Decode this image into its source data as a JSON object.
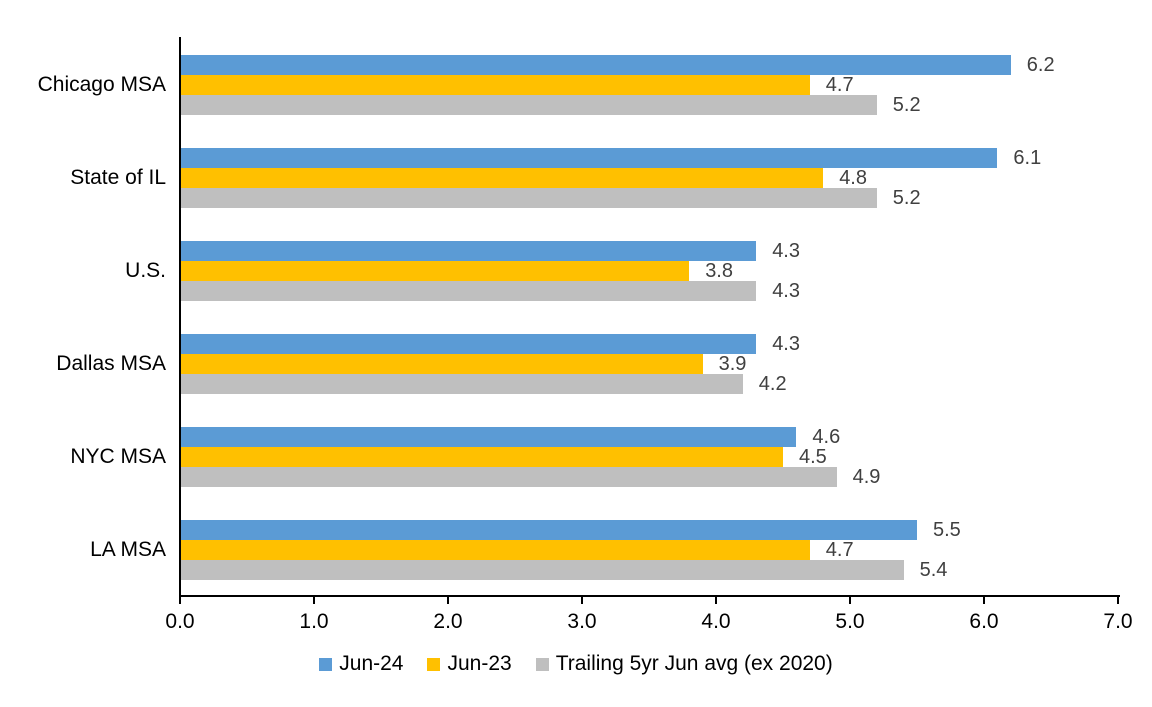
{
  "chart_data": {
    "type": "bar",
    "orientation": "horizontal",
    "title": "",
    "xlabel": "",
    "ylabel": "",
    "categories": [
      "Chicago MSA",
      "State of IL",
      "U.S.",
      "Dallas MSA",
      "NYC MSA",
      "LA MSA"
    ],
    "series": [
      {
        "name": "Jun-24",
        "color": "#5B9BD5",
        "values": [
          6.2,
          6.1,
          4.3,
          4.3,
          4.6,
          5.5
        ]
      },
      {
        "name": "Jun-23",
        "color": "#FFC000",
        "values": [
          4.7,
          4.8,
          3.8,
          3.9,
          4.5,
          4.7
        ]
      },
      {
        "name": "Trailing 5yr Jun avg (ex 2020)",
        "color": "#BFBFBF",
        "values": [
          5.2,
          5.2,
          4.3,
          4.2,
          4.9,
          5.4
        ]
      }
    ],
    "data_labels": [
      [
        "6.2",
        "4.7",
        "5.2"
      ],
      [
        "6.1",
        "4.8",
        "5.2"
      ],
      [
        "4.3",
        "3.8",
        "4.3"
      ],
      [
        "4.3",
        "3.9",
        "4.2"
      ],
      [
        "4.6",
        "4.5",
        "4.9"
      ],
      [
        "5.5",
        "4.7",
        "5.4"
      ]
    ],
    "xlim": [
      0.0,
      7.0
    ],
    "xticks": [
      "0.0",
      "1.0",
      "2.0",
      "3.0",
      "4.0",
      "5.0",
      "6.0",
      "7.0"
    ],
    "grid": false,
    "legend_position": "bottom",
    "colors": {
      "axis": "#000000",
      "data_label_text": "#404040",
      "tick_text": "#000000",
      "category_text": "#000000"
    }
  }
}
